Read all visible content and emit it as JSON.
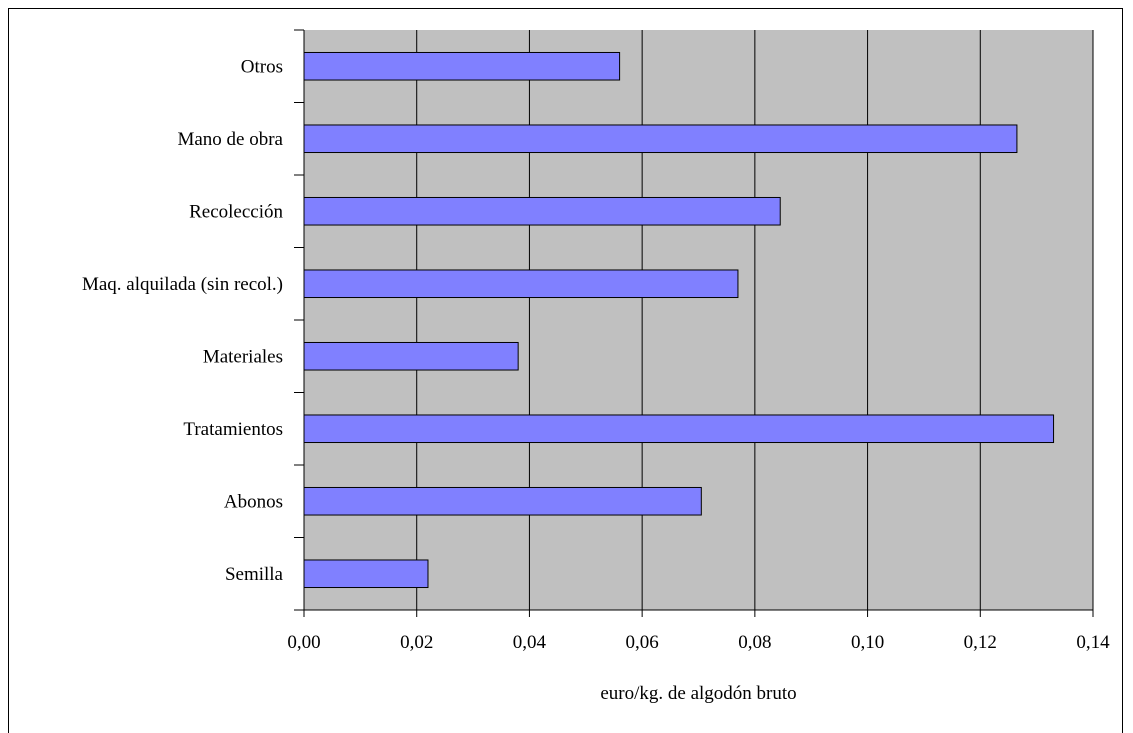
{
  "chart_data": {
    "type": "bar",
    "orientation": "horizontal",
    "categories": [
      "Semilla",
      "Abonos",
      "Tratamientos",
      "Materiales",
      "Maq. alquilada (sin recol.)",
      "Recolección",
      "Mano de obra",
      "Otros"
    ],
    "values": [
      0.022,
      0.0705,
      0.133,
      0.038,
      0.077,
      0.0845,
      0.1265,
      0.056
    ],
    "xlabel": "euro/kg. de algodón bruto",
    "ylabel": "",
    "xlim": [
      0,
      0.14
    ],
    "xticks": [
      "0,00",
      "0,02",
      "0,04",
      "0,06",
      "0,08",
      "0,10",
      "0,12",
      "0,14"
    ],
    "grid": "vertical",
    "colors": {
      "bar": "#8080ff",
      "plot_background": "#c0c0c0",
      "bar_border": "#000000"
    }
  }
}
